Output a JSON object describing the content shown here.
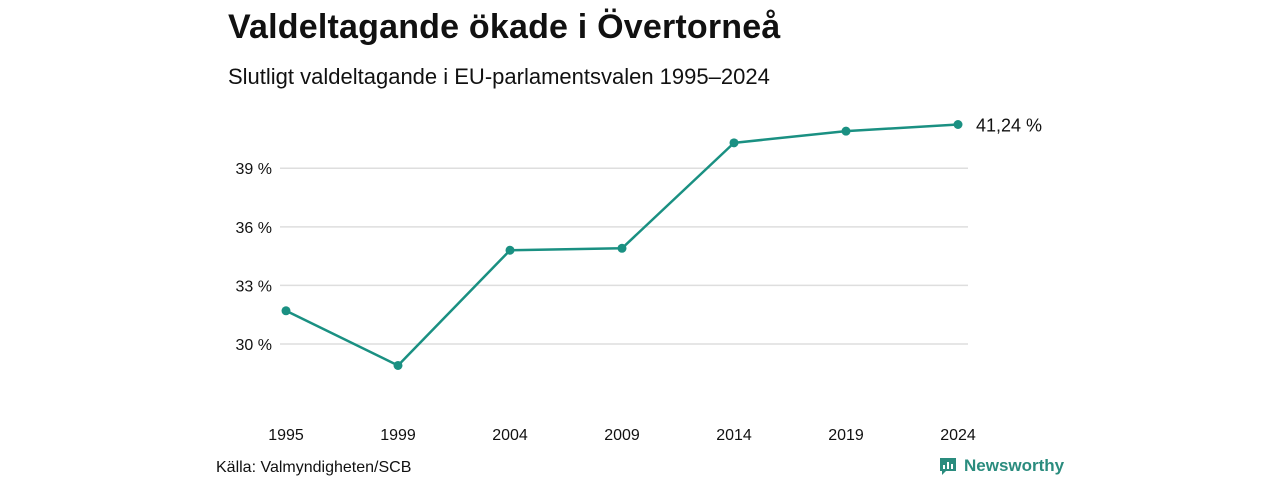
{
  "title": "Valdeltagande ökade i Övertorneå",
  "subtitle": "Slutligt valdeltagande i EU-parlamentsvalen 1995–2024",
  "source": "Källa: Valmyndigheten/SCB",
  "brand": {
    "name": "Newsworthy",
    "color": "#2a8c7e",
    "icon": "newsworthy-logo-icon"
  },
  "chart_data": {
    "type": "line",
    "categories": [
      "1995",
      "1999",
      "2004",
      "2009",
      "2014",
      "2019",
      "2024"
    ],
    "values": [
      31.7,
      28.9,
      34.8,
      34.9,
      40.3,
      40.9,
      41.24
    ],
    "y_ticks": [
      30,
      33,
      36,
      39
    ],
    "y_tick_labels": [
      "30 %",
      "33 %",
      "36 %",
      "39 %"
    ],
    "ylim": [
      27.95,
      41.88
    ],
    "end_label": "41,24 %",
    "line_color": "#1a9082",
    "grid": true,
    "grid_color": "#dedede"
  }
}
